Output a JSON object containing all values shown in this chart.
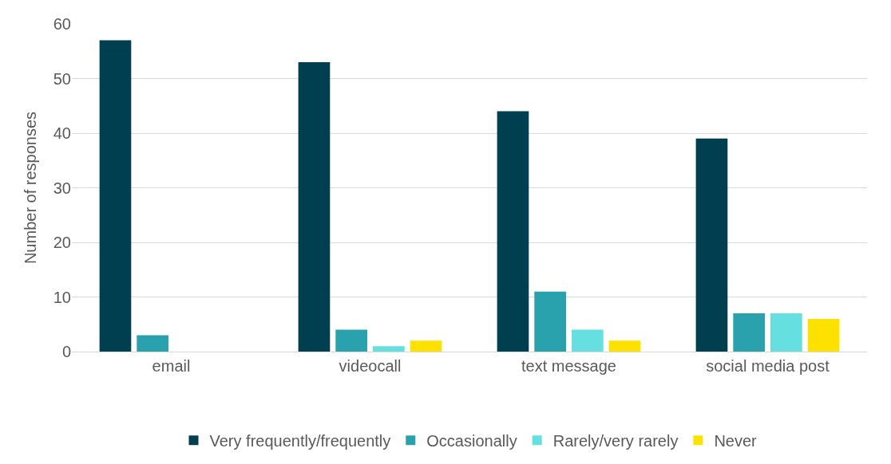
{
  "chart_data": {
    "type": "bar",
    "ylabel": "Number of responses",
    "categories": [
      "email",
      "videocall",
      "text message",
      "social media post"
    ],
    "series": [
      {
        "name": "Very frequently/frequently",
        "color": "#003f4f",
        "values": [
          57,
          53,
          44,
          39
        ]
      },
      {
        "name": "Occasionally",
        "color": "#29a2ad",
        "values": [
          3,
          4,
          11,
          7
        ]
      },
      {
        "name": "Rarely/very rarely",
        "color": "#66dfe0",
        "values": [
          0,
          1,
          4,
          7
        ]
      },
      {
        "name": "Never",
        "color": "#ffe100",
        "values": [
          0,
          2,
          2,
          6
        ]
      }
    ],
    "ylim": [
      0,
      60
    ],
    "yticks": [
      0,
      10,
      20,
      30,
      40,
      50,
      60
    ],
    "grid": "y",
    "legend": "bottom"
  }
}
